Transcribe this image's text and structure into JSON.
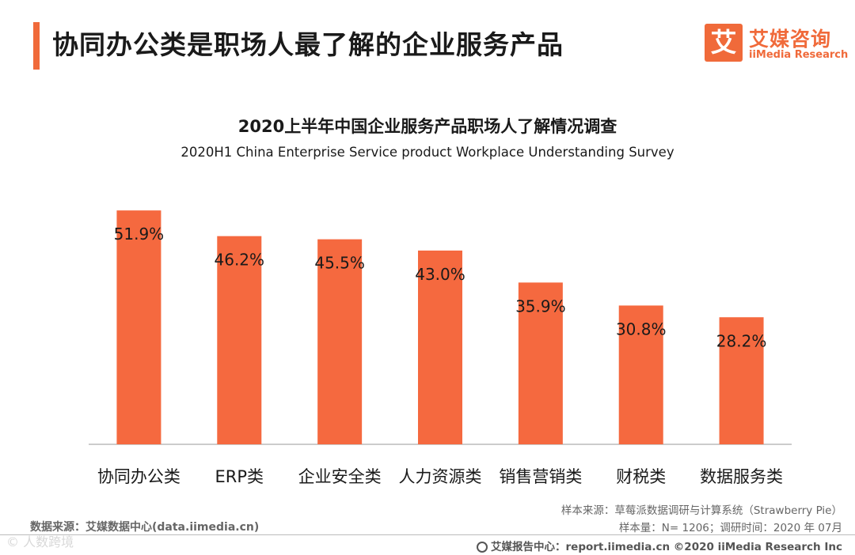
{
  "header": {
    "title": "协同办公类是职场人最了解的企业服务产品"
  },
  "logo": {
    "mark": "艾",
    "name_cn": "艾媒咨询",
    "name_en": "iiMedia Research"
  },
  "colors": {
    "accent": "#f06a3a",
    "bar": "#f5693f",
    "text": "#1a1a1a",
    "muted": "#666666"
  },
  "chart_data": {
    "type": "bar",
    "title": "2020上半年中国企业服务产品职场人了解情况调查",
    "subtitle": "2020H1 China Enterprise Service product Workplace Understanding Survey",
    "categories": [
      "协同办公类",
      "ERP类",
      "企业安全类",
      "人力资源类",
      "销售营销类",
      "财税类",
      "数据服务类"
    ],
    "values": [
      51.9,
      46.2,
      45.5,
      43.0,
      35.9,
      30.8,
      28.2
    ],
    "labels": [
      "51.9%",
      "46.2%",
      "45.5%",
      "43.0%",
      "35.9%",
      "30.8%",
      "28.2%"
    ],
    "unit": "%",
    "ylim": [
      0,
      60
    ],
    "grid": false,
    "xlabel": "",
    "ylabel": ""
  },
  "source": {
    "data_source": "数据来源：艾媒数据中心(data.iimedia.cn)",
    "sample_source": "样本来源：草莓派数据调研与计算系统（Strawberry Pie）",
    "sample_info": "样本量：N= 1206；调研时间：2020 年 07月"
  },
  "footer": {
    "text": "艾媒报告中心：report.iimedia.cn  ©2020  iiMedia Research  Inc"
  },
  "watermark": {
    "text": "© 人数跨境"
  }
}
